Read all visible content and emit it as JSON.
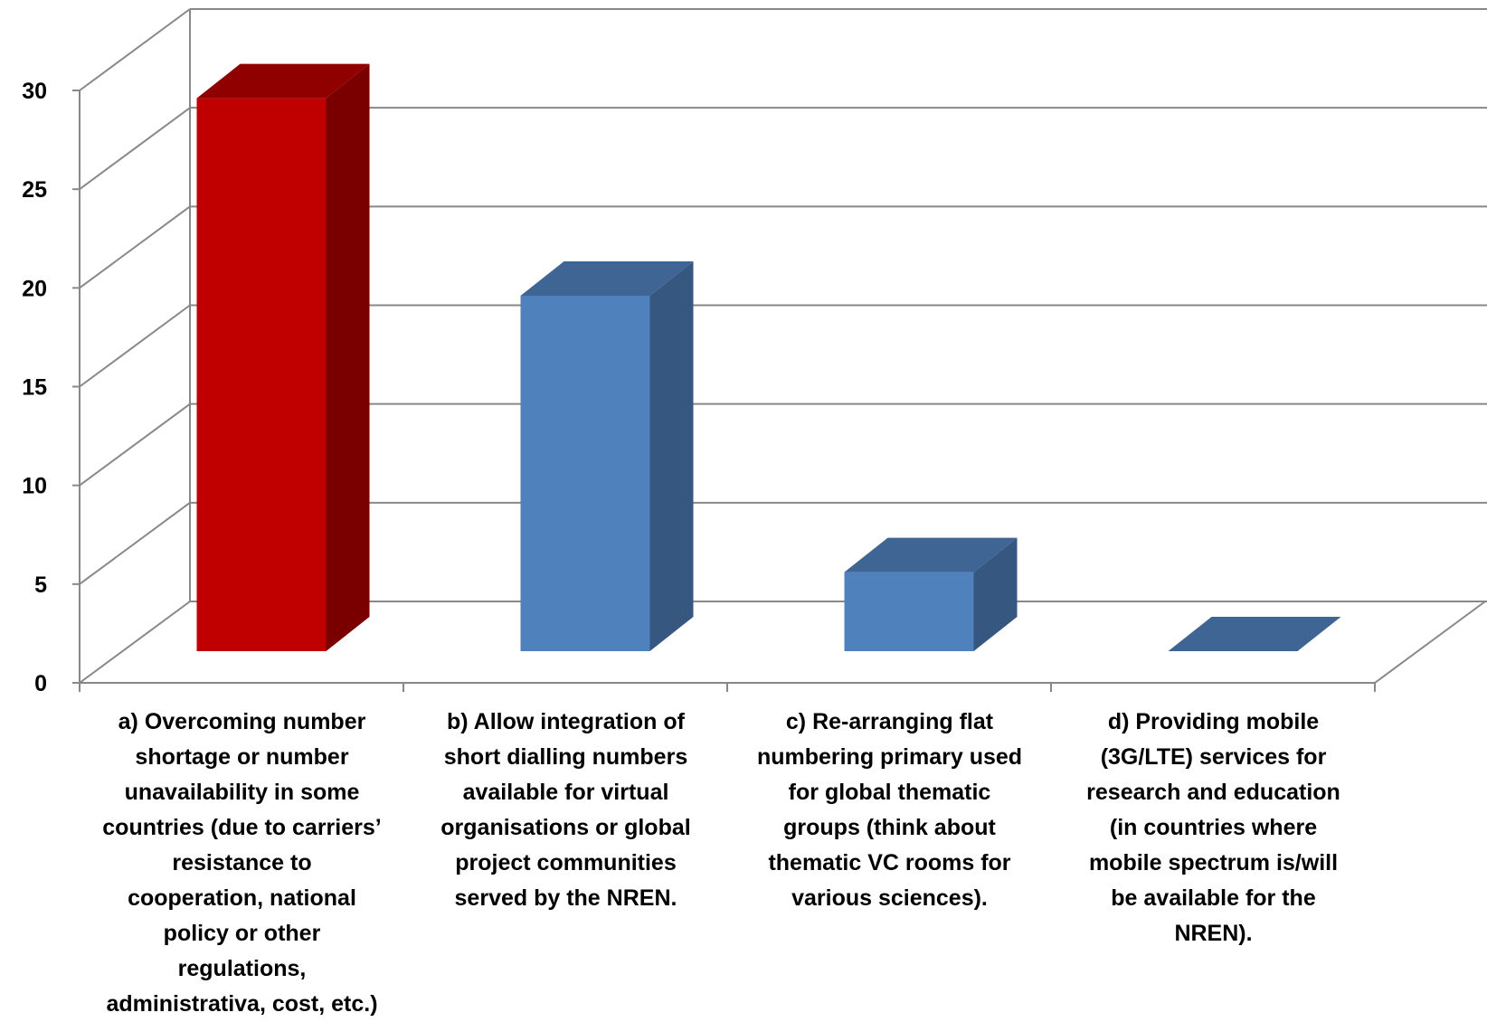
{
  "chart_data": {
    "type": "bar",
    "style": "3d-column",
    "categories": [
      "a) Overcoming number\nshortage or number\nunavailability in some\ncountries (due to carriers’\nresistance to\ncooperation, national\npolicy or other\nregulations,\nadministrativa, cost, etc.)",
      "b) Allow integration of\nshort dialling numbers\navailable for virtual\norganisations or global\nproject communities\nserved by the NREN.",
      "c) Re-arranging flat\nnumbering primary used\nfor global thematic\ngroups (think about\nthematic VC rooms for\nvarious sciences).",
      "d) Providing mobile\n(3G/LTE) services for\nresearch and education\n(in countries where\nmobile spectrum is/will\nbe available for the\nNREN)."
    ],
    "values": [
      28,
      18,
      4,
      0
    ],
    "ylim": [
      0,
      30
    ],
    "yticks": [
      "0",
      "5",
      "10",
      "15",
      "20",
      "25",
      "30"
    ],
    "grid": true,
    "legend": "none",
    "colors": {
      "highlight_front": "#C00000",
      "highlight_top": "#900000",
      "highlight_side": "#7A0000",
      "bar_front": "#4F81BD",
      "bar_top": "#3E6593",
      "bar_side": "#36577F",
      "grid": "#888888"
    }
  }
}
